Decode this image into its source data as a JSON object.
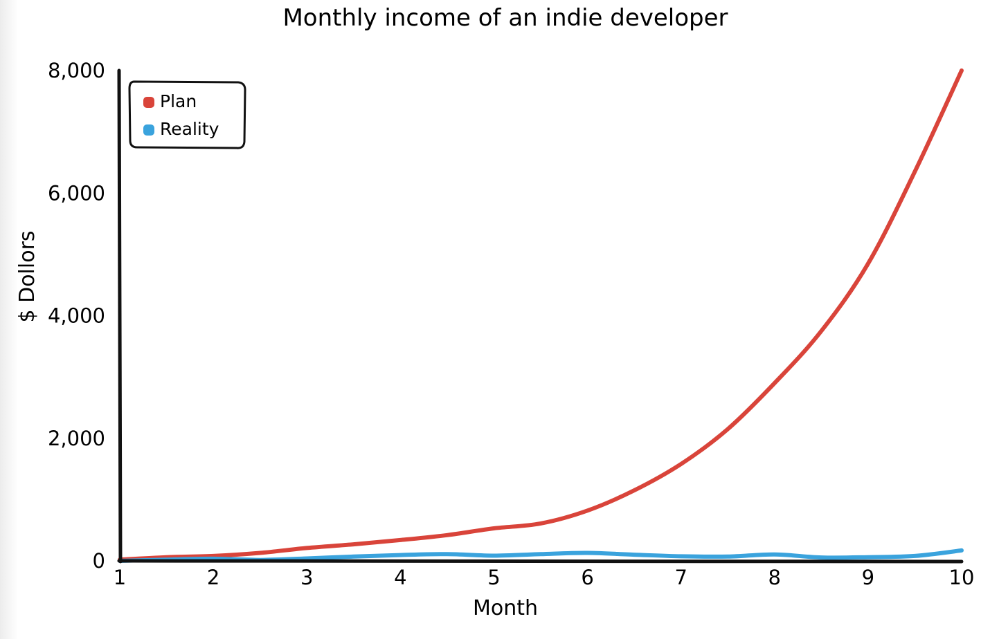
{
  "chart_data": {
    "type": "line",
    "title": "Monthly income of an indie developer",
    "xlabel": "Month",
    "ylabel": "$ Dollors",
    "xlim": [
      1,
      10
    ],
    "ylim": [
      0,
      8000
    ],
    "x_ticks": [
      1,
      2,
      3,
      4,
      5,
      6,
      7,
      8,
      9,
      10
    ],
    "y_ticks": [
      0,
      2000,
      4000,
      6000,
      8000
    ],
    "y_tick_labels": [
      "0",
      "2,000",
      "4,000",
      "6,000",
      "8,000"
    ],
    "grid": false,
    "legend_position": "top-left",
    "x": [
      1,
      1.5,
      2,
      2.5,
      3,
      3.5,
      4,
      4.5,
      5,
      5.5,
      6,
      6.5,
      7,
      7.5,
      8,
      8.5,
      9,
      9.5,
      10
    ],
    "series": [
      {
        "name": "Plan",
        "color": "#d9443a",
        "values": [
          20,
          60,
          80,
          130,
          210,
          270,
          340,
          420,
          530,
          610,
          820,
          1150,
          1580,
          2150,
          2900,
          3750,
          4850,
          6350,
          8000
        ]
      },
      {
        "name": "Reality",
        "color": "#3aa3dd",
        "values": [
          0,
          20,
          35,
          15,
          40,
          70,
          95,
          110,
          85,
          110,
          130,
          100,
          75,
          70,
          105,
          55,
          60,
          80,
          170
        ]
      }
    ]
  }
}
